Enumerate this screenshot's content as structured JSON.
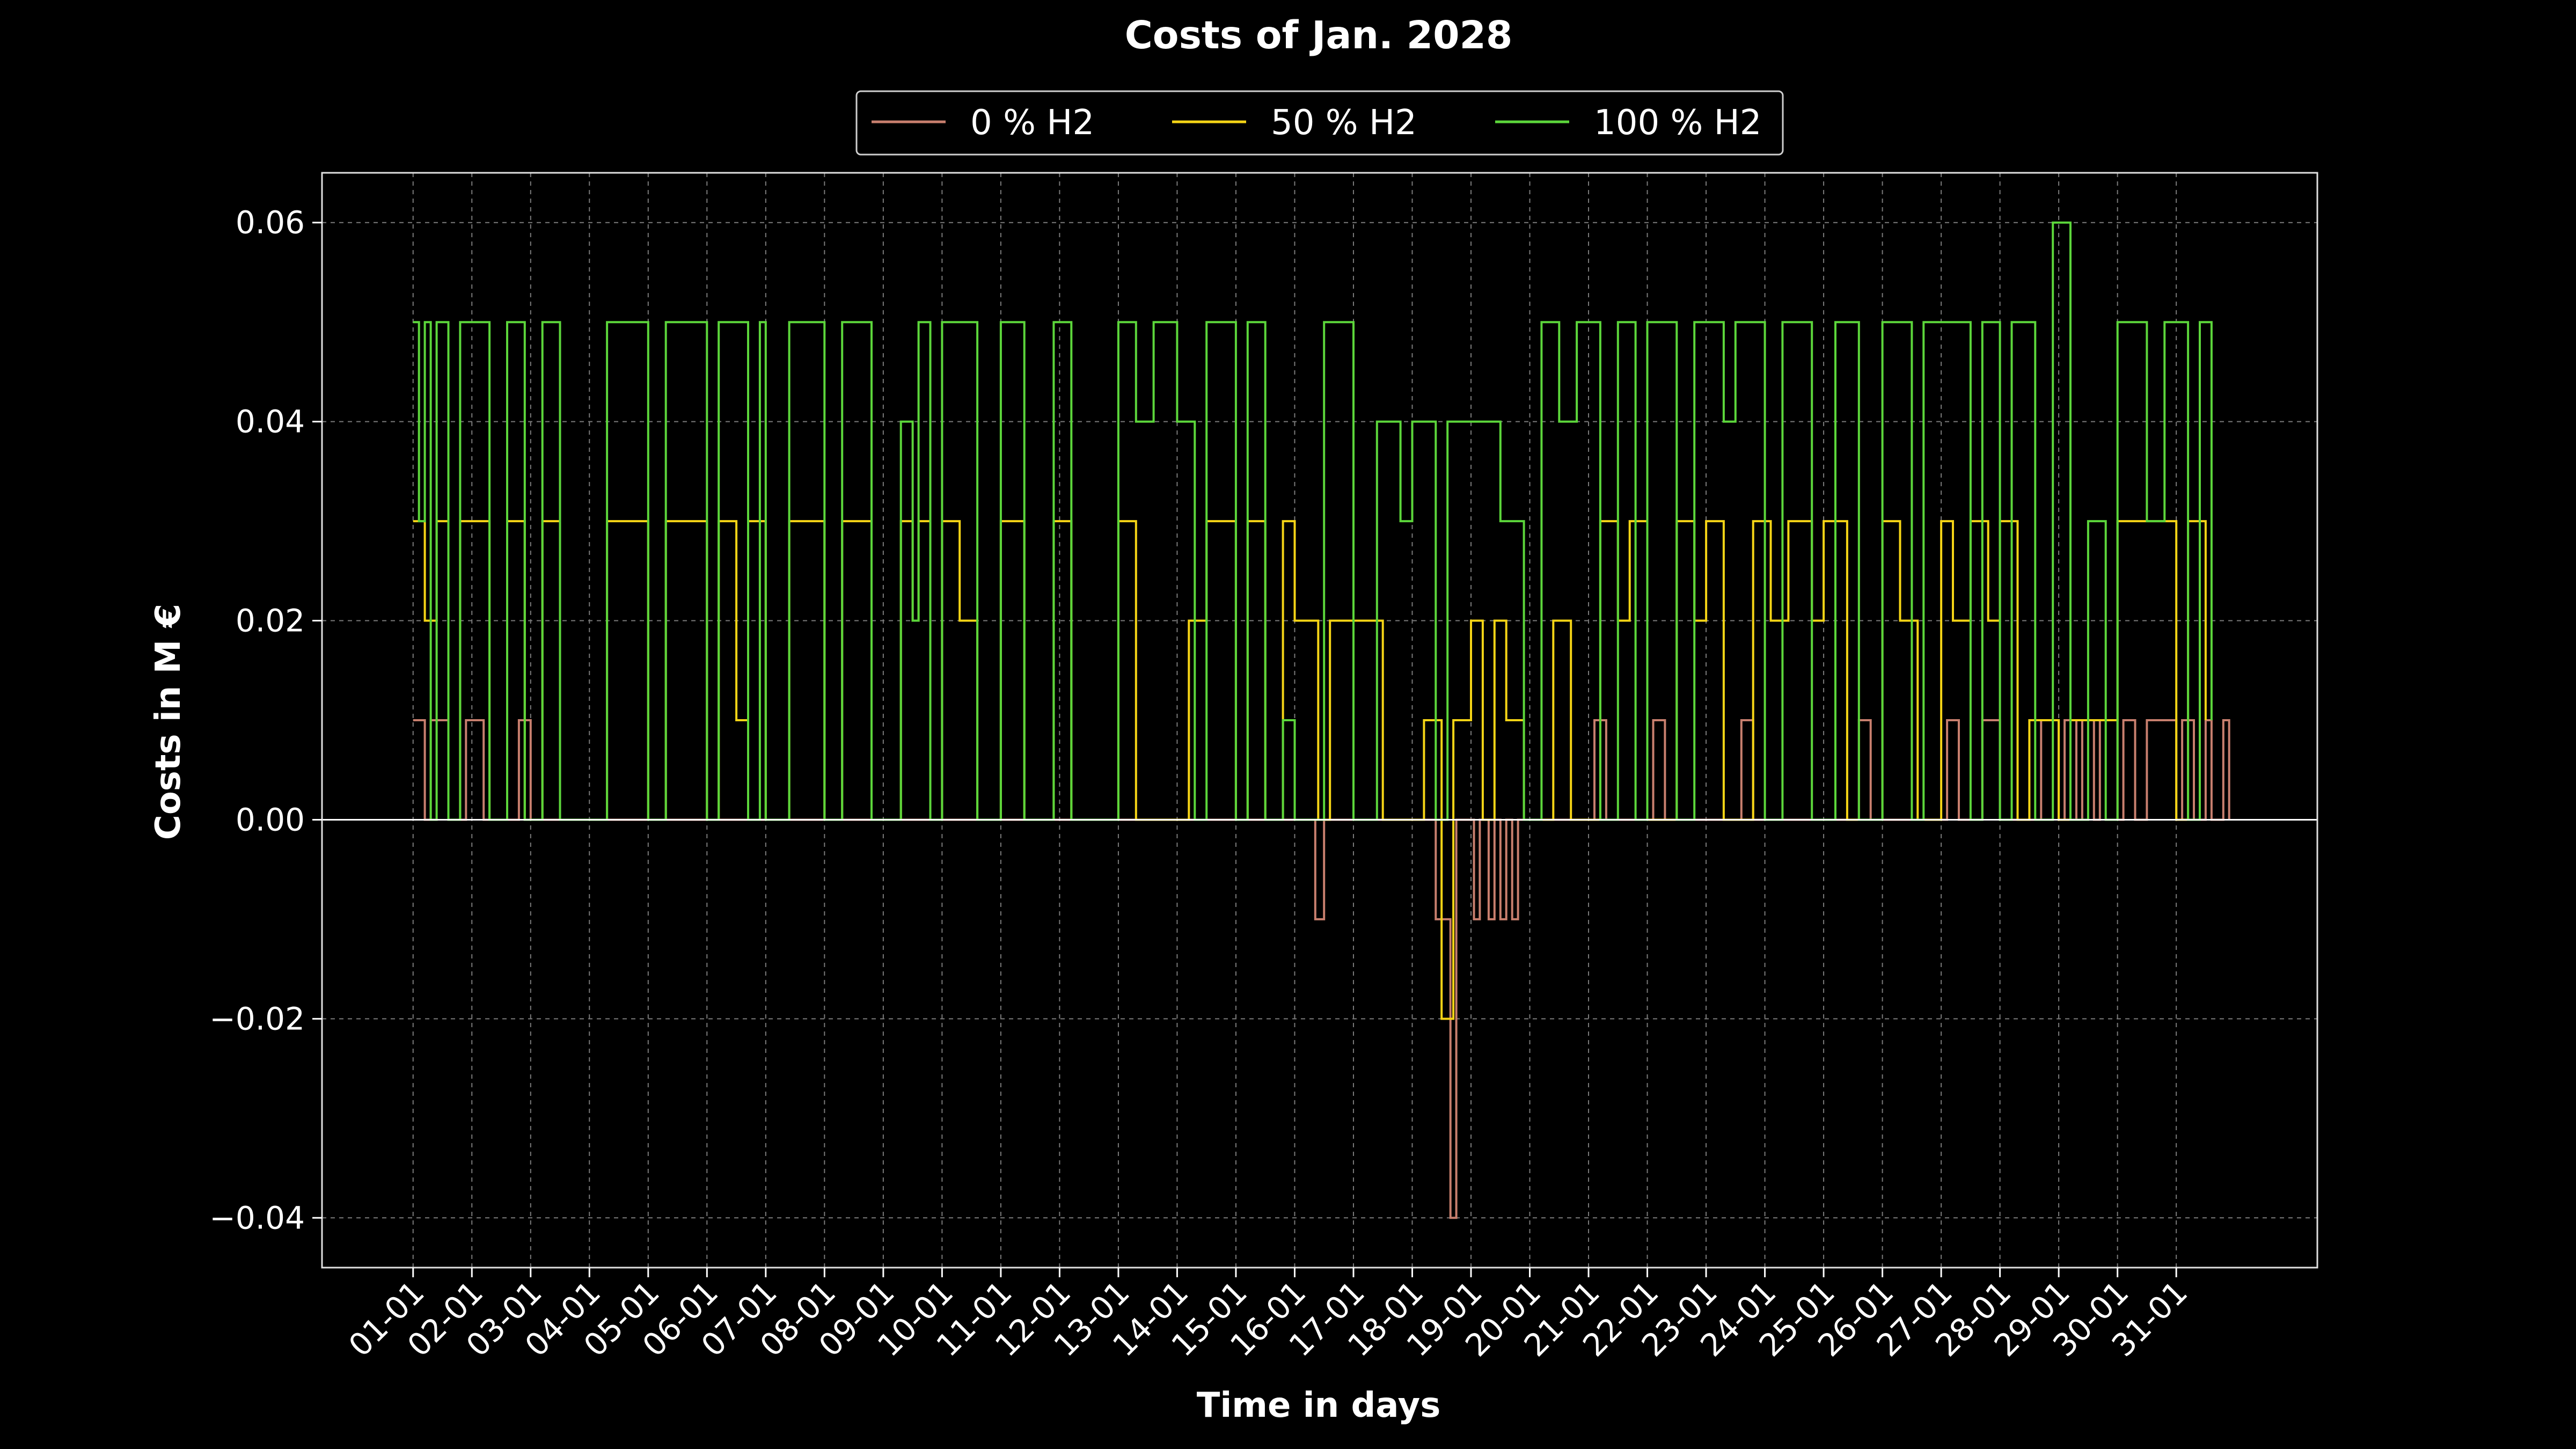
{
  "chart_data": {
    "type": "line",
    "title": "Costs of Jan. 2028",
    "xlabel": "Time in days",
    "ylabel": "Costs in M €",
    "ylim": [
      -0.045,
      0.065
    ],
    "yticks": [
      "−0.04",
      "−0.02",
      "0.00",
      "0.02",
      "0.04",
      "0.06"
    ],
    "ytick_values": [
      -0.04,
      -0.02,
      0.0,
      0.02,
      0.04,
      0.06
    ],
    "x_unit": "day of January (1 = 01-01 00:00)",
    "xlim_days": [
      -0.55,
      33.4
    ],
    "xticks": [
      "01-01",
      "02-01",
      "03-01",
      "04-01",
      "05-01",
      "06-01",
      "07-01",
      "08-01",
      "09-01",
      "10-01",
      "11-01",
      "12-01",
      "13-01",
      "14-01",
      "15-01",
      "16-01",
      "17-01",
      "18-01",
      "19-01",
      "20-01",
      "21-01",
      "22-01",
      "23-01",
      "24-01",
      "25-01",
      "26-01",
      "27-01",
      "28-01",
      "29-01",
      "30-01",
      "31-01"
    ],
    "grid": true,
    "legend": {
      "placement": "top-center",
      "entries": [
        "0 % H2",
        "50 % H2",
        "100 % H2"
      ]
    },
    "series": [
      {
        "name": "0 % H2",
        "color": "#c87f6e",
        "points": [
          [
            1.0,
            0.01
          ],
          [
            1.2,
            0.0
          ],
          [
            1.3,
            0.01
          ],
          [
            1.6,
            0.0
          ],
          [
            1.9,
            0.01
          ],
          [
            2.2,
            0.0
          ],
          [
            2.8,
            0.01
          ],
          [
            3.0,
            0.0
          ],
          [
            16.3,
            0.0
          ],
          [
            16.35,
            -0.01
          ],
          [
            16.5,
            0.0
          ],
          [
            18.3,
            0.0
          ],
          [
            18.4,
            -0.01
          ],
          [
            18.6,
            -0.01
          ],
          [
            18.65,
            -0.04
          ],
          [
            18.75,
            0.0
          ],
          [
            19.0,
            0.0
          ],
          [
            19.05,
            -0.01
          ],
          [
            19.15,
            0.0
          ],
          [
            19.3,
            -0.01
          ],
          [
            19.4,
            0.0
          ],
          [
            19.5,
            -0.01
          ],
          [
            19.6,
            0.0
          ],
          [
            19.7,
            -0.01
          ],
          [
            19.8,
            0.0
          ],
          [
            21.0,
            0.0
          ],
          [
            21.1,
            0.01
          ],
          [
            21.3,
            0.0
          ],
          [
            22.0,
            0.0
          ],
          [
            22.1,
            0.01
          ],
          [
            22.3,
            0.0
          ],
          [
            23.5,
            0.0
          ],
          [
            23.6,
            0.01
          ],
          [
            23.8,
            0.0
          ],
          [
            25.5,
            0.0
          ],
          [
            25.6,
            0.01
          ],
          [
            25.8,
            0.0
          ],
          [
            27.0,
            0.0
          ],
          [
            27.1,
            0.01
          ],
          [
            27.3,
            0.0
          ],
          [
            27.6,
            0.0
          ],
          [
            27.7,
            0.01
          ],
          [
            28.0,
            0.0
          ],
          [
            28.6,
            0.0
          ],
          [
            28.7,
            0.01
          ],
          [
            29.0,
            0.0
          ],
          [
            29.1,
            0.01
          ],
          [
            29.3,
            0.0
          ],
          [
            29.4,
            0.01
          ],
          [
            29.6,
            0.0
          ],
          [
            29.7,
            0.01
          ],
          [
            30.0,
            0.0
          ],
          [
            30.1,
            0.01
          ],
          [
            30.3,
            0.0
          ],
          [
            30.5,
            0.01
          ],
          [
            31.0,
            0.0
          ],
          [
            31.1,
            0.01
          ],
          [
            31.3,
            0.0
          ],
          [
            31.5,
            0.01
          ],
          [
            31.6,
            0.0
          ],
          [
            31.8,
            0.01
          ],
          [
            31.9,
            0.0
          ]
        ]
      },
      {
        "name": "50 % H2",
        "color": "#f5d416",
        "points": [
          [
            1.0,
            0.03
          ],
          [
            1.2,
            0.02
          ],
          [
            1.4,
            0.03
          ],
          [
            1.6,
            0.0
          ],
          [
            1.8,
            0.03
          ],
          [
            2.3,
            0.0
          ],
          [
            2.6,
            0.03
          ],
          [
            2.9,
            0.0
          ],
          [
            3.2,
            0.03
          ],
          [
            3.5,
            0.0
          ],
          [
            4.3,
            0.03
          ],
          [
            5.0,
            0.0
          ],
          [
            5.3,
            0.03
          ],
          [
            6.0,
            0.0
          ],
          [
            6.2,
            0.03
          ],
          [
            6.5,
            0.01
          ],
          [
            6.7,
            0.03
          ],
          [
            7.0,
            0.0
          ],
          [
            7.4,
            0.03
          ],
          [
            8.0,
            0.0
          ],
          [
            8.3,
            0.03
          ],
          [
            8.8,
            0.0
          ],
          [
            9.3,
            0.03
          ],
          [
            9.5,
            0.02
          ],
          [
            9.6,
            0.03
          ],
          [
            9.8,
            0.0
          ],
          [
            10.0,
            0.03
          ],
          [
            10.3,
            0.02
          ],
          [
            10.6,
            0.0
          ],
          [
            11.0,
            0.03
          ],
          [
            11.4,
            0.0
          ],
          [
            11.9,
            0.03
          ],
          [
            12.2,
            0.0
          ],
          [
            13.0,
            0.03
          ],
          [
            13.3,
            0.0
          ],
          [
            14.2,
            0.02
          ],
          [
            14.5,
            0.03
          ],
          [
            15.0,
            0.0
          ],
          [
            15.2,
            0.03
          ],
          [
            15.5,
            0.0
          ],
          [
            15.8,
            0.03
          ],
          [
            16.0,
            0.02
          ],
          [
            16.4,
            0.0
          ],
          [
            16.6,
            0.02
          ],
          [
            17.5,
            0.0
          ],
          [
            18.2,
            0.01
          ],
          [
            18.5,
            -0.02
          ],
          [
            18.7,
            0.01
          ],
          [
            19.0,
            0.02
          ],
          [
            19.2,
            0.0
          ],
          [
            19.4,
            0.02
          ],
          [
            19.6,
            0.01
          ],
          [
            19.9,
            0.0
          ],
          [
            20.4,
            0.02
          ],
          [
            20.7,
            0.0
          ],
          [
            21.2,
            0.03
          ],
          [
            21.5,
            0.02
          ],
          [
            21.7,
            0.03
          ],
          [
            22.0,
            0.0
          ],
          [
            22.5,
            0.03
          ],
          [
            22.8,
            0.02
          ],
          [
            23.0,
            0.03
          ],
          [
            23.3,
            0.0
          ],
          [
            23.8,
            0.03
          ],
          [
            24.1,
            0.02
          ],
          [
            24.4,
            0.03
          ],
          [
            24.8,
            0.02
          ],
          [
            25.0,
            0.03
          ],
          [
            25.4,
            0.0
          ],
          [
            26.0,
            0.03
          ],
          [
            26.3,
            0.02
          ],
          [
            26.6,
            0.0
          ],
          [
            27.0,
            0.03
          ],
          [
            27.2,
            0.02
          ],
          [
            27.5,
            0.03
          ],
          [
            27.8,
            0.02
          ],
          [
            28.0,
            0.03
          ],
          [
            28.3,
            0.0
          ],
          [
            28.5,
            0.01
          ],
          [
            29.0,
            0.0
          ],
          [
            29.2,
            0.01
          ],
          [
            30.0,
            0.03
          ],
          [
            31.0,
            0.0
          ],
          [
            31.2,
            0.03
          ],
          [
            31.5,
            0.01
          ]
        ]
      },
      {
        "name": "100 % H2",
        "color": "#5cd63b",
        "points": [
          [
            1.0,
            0.05
          ],
          [
            1.1,
            0.03
          ],
          [
            1.2,
            0.05
          ],
          [
            1.3,
            0.0
          ],
          [
            1.4,
            0.05
          ],
          [
            1.6,
            0.0
          ],
          [
            1.8,
            0.05
          ],
          [
            2.3,
            0.0
          ],
          [
            2.6,
            0.05
          ],
          [
            2.9,
            0.0
          ],
          [
            3.2,
            0.05
          ],
          [
            3.5,
            0.0
          ],
          [
            4.3,
            0.05
          ],
          [
            5.0,
            0.0
          ],
          [
            5.3,
            0.05
          ],
          [
            6.0,
            0.0
          ],
          [
            6.2,
            0.05
          ],
          [
            6.7,
            0.0
          ],
          [
            6.9,
            0.05
          ],
          [
            7.0,
            0.0
          ],
          [
            7.4,
            0.05
          ],
          [
            8.0,
            0.0
          ],
          [
            8.3,
            0.05
          ],
          [
            8.8,
            0.0
          ],
          [
            9.3,
            0.04
          ],
          [
            9.5,
            0.02
          ],
          [
            9.6,
            0.05
          ],
          [
            9.8,
            0.0
          ],
          [
            10.0,
            0.05
          ],
          [
            10.6,
            0.0
          ],
          [
            11.0,
            0.05
          ],
          [
            11.4,
            0.0
          ],
          [
            11.9,
            0.05
          ],
          [
            12.2,
            0.0
          ],
          [
            13.0,
            0.05
          ],
          [
            13.3,
            0.04
          ],
          [
            13.6,
            0.05
          ],
          [
            14.0,
            0.04
          ],
          [
            14.3,
            0.0
          ],
          [
            14.5,
            0.05
          ],
          [
            15.0,
            0.0
          ],
          [
            15.2,
            0.05
          ],
          [
            15.5,
            0.0
          ],
          [
            15.8,
            0.01
          ],
          [
            16.0,
            0.0
          ],
          [
            16.5,
            0.05
          ],
          [
            17.0,
            0.0
          ],
          [
            17.4,
            0.04
          ],
          [
            17.8,
            0.03
          ],
          [
            18.0,
            0.04
          ],
          [
            18.4,
            0.0
          ],
          [
            18.6,
            0.04
          ],
          [
            19.0,
            0.04
          ],
          [
            19.5,
            0.03
          ],
          [
            19.9,
            0.0
          ],
          [
            20.2,
            0.05
          ],
          [
            20.5,
            0.04
          ],
          [
            20.8,
            0.05
          ],
          [
            21.2,
            0.0
          ],
          [
            21.5,
            0.05
          ],
          [
            21.8,
            0.0
          ],
          [
            22.0,
            0.05
          ],
          [
            22.5,
            0.0
          ],
          [
            22.8,
            0.05
          ],
          [
            23.3,
            0.04
          ],
          [
            23.5,
            0.05
          ],
          [
            24.0,
            0.0
          ],
          [
            24.3,
            0.05
          ],
          [
            24.8,
            0.0
          ],
          [
            25.2,
            0.05
          ],
          [
            25.6,
            0.0
          ],
          [
            26.0,
            0.05
          ],
          [
            26.5,
            0.0
          ],
          [
            26.7,
            0.05
          ],
          [
            27.5,
            0.0
          ],
          [
            27.7,
            0.05
          ],
          [
            28.0,
            0.0
          ],
          [
            28.2,
            0.05
          ],
          [
            28.6,
            0.0
          ],
          [
            28.9,
            0.06
          ],
          [
            29.2,
            0.0
          ],
          [
            29.5,
            0.03
          ],
          [
            29.8,
            0.0
          ],
          [
            30.0,
            0.05
          ],
          [
            30.5,
            0.03
          ],
          [
            30.8,
            0.05
          ],
          [
            31.2,
            0.0
          ],
          [
            31.4,
            0.05
          ],
          [
            31.6,
            0.01
          ]
        ]
      }
    ]
  }
}
